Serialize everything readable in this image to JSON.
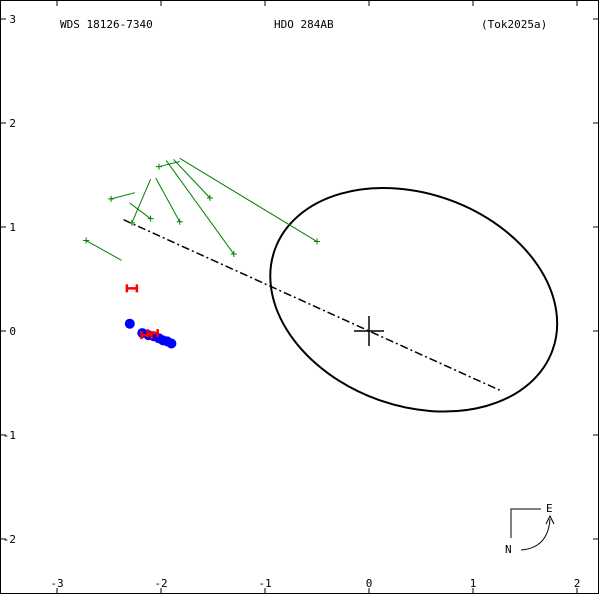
{
  "header": {
    "wds": "WDS 18126-7340",
    "name": "HDO 284AB",
    "ref": "(Tok2025a)"
  },
  "compass": {
    "east": "E",
    "north": "N"
  },
  "colors": {
    "frame": "#000000",
    "orbit": "#000000",
    "residual": "#008000",
    "micrometer": "#0000ff",
    "speckle": "#ff0000"
  },
  "chart_data": {
    "type": "scatter",
    "title": "",
    "xlim": [
      -3.0,
      2.15
    ],
    "ylim": [
      -2.55,
      3.1
    ],
    "y_inverted": true,
    "x_ticks": [
      {
        "v": -3,
        "label": "-3"
      },
      {
        "v": -2,
        "label": "-2"
      },
      {
        "v": -1,
        "label": "-1"
      },
      {
        "v": 0,
        "label": "0"
      },
      {
        "v": 1,
        "label": "1"
      },
      {
        "v": 2,
        "label": "2"
      }
    ],
    "y_ticks": [
      {
        "v": 3,
        "label": "3"
      },
      {
        "v": 2,
        "label": "2"
      },
      {
        "v": 1,
        "label": "1"
      },
      {
        "v": 0,
        "label": "0"
      },
      {
        "v": -1,
        "label": "-1"
      },
      {
        "v": -2,
        "label": "-2"
      }
    ],
    "primary": {
      "x": 0,
      "y": 0
    },
    "orbit_ellipse": {
      "cx": 0.43,
      "cy": 0.3,
      "rx": 1.42,
      "ry": 1.02,
      "angle_deg": 20
    },
    "line_of_nodes": [
      [
        -2.36,
        1.07
      ],
      [
        1.28,
        -0.58
      ]
    ],
    "residuals": [
      {
        "from": [
          -2.72,
          0.87
        ],
        "to": [
          -2.38,
          0.68
        ]
      },
      {
        "from": [
          -2.48,
          1.27
        ],
        "to": [
          -2.25,
          1.33
        ]
      },
      {
        "from": [
          -2.28,
          1.04
        ],
        "to": [
          -2.1,
          1.46
        ]
      },
      {
        "from": [
          -2.1,
          1.08
        ],
        "to": [
          -2.3,
          1.23
        ]
      },
      {
        "from": [
          -1.82,
          1.05
        ],
        "to": [
          -2.05,
          1.47
        ]
      },
      {
        "from": [
          -2.02,
          1.58
        ],
        "to": [
          -1.82,
          1.63
        ]
      },
      {
        "from": [
          -1.3,
          0.74
        ],
        "to": [
          -1.95,
          1.64
        ]
      },
      {
        "from": [
          -1.53,
          1.28
        ],
        "to": [
          -1.88,
          1.65
        ]
      },
      {
        "from": [
          -0.5,
          0.86
        ],
        "to": [
          -1.82,
          1.66
        ]
      }
    ],
    "micrometer_points": [
      [
        -2.3,
        0.07
      ],
      [
        -2.18,
        -0.02
      ],
      [
        -2.12,
        -0.04
      ],
      [
        -2.07,
        -0.05
      ],
      [
        -2.02,
        -0.07
      ],
      [
        -1.98,
        -0.09
      ],
      [
        -1.94,
        -0.1
      ],
      [
        -1.9,
        -0.12
      ]
    ],
    "speckle_points": [
      [
        -2.28,
        0.41
      ],
      [
        -2.14,
        -0.04
      ],
      [
        -2.08,
        -0.02
      ]
    ]
  }
}
